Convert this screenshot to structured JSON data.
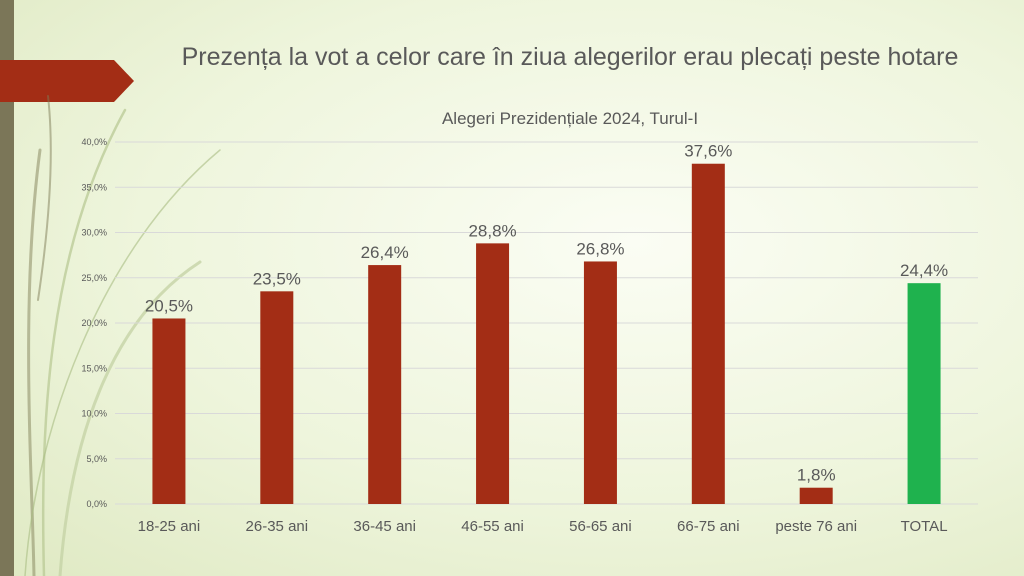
{
  "slide": {
    "title": "Prezența la vot a celor care în ziua alegerilor erau plecați peste hotare",
    "subtitle": "Alegeri Prezidențiale 2024, Turul-I"
  },
  "colors": {
    "bar_default": "#a32d15",
    "bar_total": "#1fb24e",
    "text": "#595959",
    "grid": "#d9d9d9",
    "accent_arrow": "#a32d15",
    "side_bar": "#7b7658"
  },
  "chart_data": {
    "type": "bar",
    "categories": [
      "18-25 ani",
      "26-35 ani",
      "36-45 ani",
      "46-55 ani",
      "56-65 ani",
      "66-75 ani",
      "peste 76 ani",
      "TOTAL"
    ],
    "values": [
      20.5,
      23.5,
      26.4,
      28.8,
      26.8,
      37.6,
      1.8,
      24.4
    ],
    "data_labels": [
      "20,5%",
      "23,5%",
      "26,4%",
      "28,8%",
      "26,8%",
      "37,6%",
      "1,8%",
      "24,4%"
    ],
    "y_ticks": [
      0,
      5,
      10,
      15,
      20,
      25,
      30,
      35,
      40
    ],
    "y_tick_labels": [
      "0,0%",
      "5,0%",
      "10,0%",
      "15,0%",
      "20,0%",
      "25,0%",
      "30,0%",
      "35,0%",
      "40,0%"
    ],
    "ylim": [
      0,
      40
    ],
    "grid": true,
    "highlight_category": "TOTAL"
  }
}
